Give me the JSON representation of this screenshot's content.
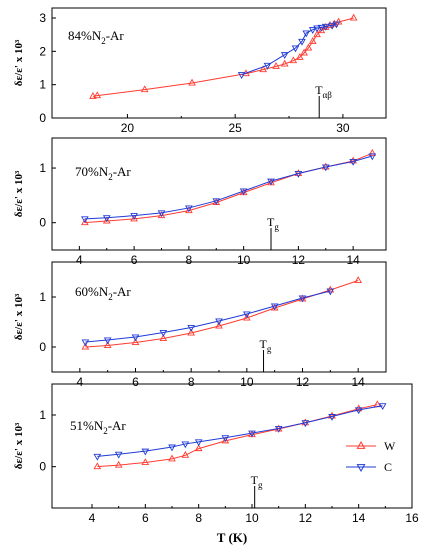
{
  "chart_data": [
    {
      "type": "line",
      "panel_title": "84%N2-Ar",
      "ylabel": "δε/ε' x 10³",
      "xlim": [
        16.5,
        32
      ],
      "ylim": [
        0,
        3.3
      ],
      "xticks": [
        20,
        25,
        30
      ],
      "yticks": [
        0,
        1,
        2,
        3
      ],
      "marker": {
        "label": "Tαβ",
        "x": 28.9
      },
      "series": [
        {
          "name": "W",
          "color": "#ff3b30",
          "symbol": "triangle-up",
          "x": [
            18.4,
            18.6,
            20.8,
            23.0,
            25.5,
            26.3,
            26.9,
            27.3,
            27.7,
            28.0,
            28.2,
            28.4,
            28.6,
            28.8,
            29.0,
            29.2,
            29.4,
            29.6,
            29.8,
            30.5
          ],
          "y": [
            0.65,
            0.67,
            0.85,
            1.05,
            1.33,
            1.45,
            1.55,
            1.62,
            1.72,
            1.82,
            1.95,
            2.1,
            2.3,
            2.5,
            2.62,
            2.72,
            2.78,
            2.82,
            2.88,
            3.0
          ]
        },
        {
          "name": "C",
          "color": "#1f3bd6",
          "symbol": "triangle-down",
          "x": [
            25.3,
            26.5,
            27.3,
            27.8,
            28.1,
            28.3,
            28.6,
            28.8,
            29.0,
            29.2,
            29.5,
            29.7
          ],
          "y": [
            1.3,
            1.58,
            1.9,
            2.1,
            2.3,
            2.55,
            2.65,
            2.7,
            2.72,
            2.75,
            2.78,
            2.82
          ]
        }
      ]
    },
    {
      "type": "line",
      "panel_title": "70%N2-Ar",
      "ylabel": "δε/ε' x 10³",
      "xlim": [
        3.0,
        15.2
      ],
      "ylim": [
        -0.5,
        1.55
      ],
      "xticks": [
        4,
        6,
        8,
        10,
        12,
        14
      ],
      "yticks": [
        0,
        1
      ],
      "marker": {
        "label": "Tg",
        "x": 11.0
      },
      "series": [
        {
          "name": "W",
          "color": "#ff3b30",
          "symbol": "triangle-up",
          "x": [
            4.2,
            5.0,
            6.0,
            7.0,
            8.0,
            9.0,
            10.0,
            11.0,
            12.0,
            13.0,
            14.0,
            14.7
          ],
          "y": [
            0.0,
            0.03,
            0.07,
            0.13,
            0.22,
            0.37,
            0.55,
            0.73,
            0.9,
            1.02,
            1.13,
            1.27
          ]
        },
        {
          "name": "C",
          "color": "#1f3bd6",
          "symbol": "triangle-down",
          "x": [
            4.2,
            5.0,
            6.0,
            7.0,
            8.0,
            9.0,
            10.0,
            11.0,
            12.0,
            13.0,
            14.0,
            14.7
          ],
          "y": [
            0.07,
            0.09,
            0.13,
            0.18,
            0.27,
            0.4,
            0.58,
            0.76,
            0.9,
            1.02,
            1.12,
            1.22
          ]
        }
      ]
    },
    {
      "type": "line",
      "panel_title": "60%N2-Ar",
      "ylabel": "δε/ε' x 10³",
      "xlim": [
        3.0,
        15.0
      ],
      "ylim": [
        -0.5,
        1.7
      ],
      "xticks": [
        4,
        6,
        8,
        10,
        12,
        14
      ],
      "yticks": [
        0,
        1
      ],
      "marker": {
        "label": "Tg",
        "x": 10.6
      },
      "series": [
        {
          "name": "W",
          "color": "#ff3b30",
          "symbol": "triangle-up",
          "x": [
            4.2,
            5.0,
            6.0,
            7.0,
            8.0,
            9.0,
            10.0,
            11.0,
            12.0,
            13.0,
            14.0
          ],
          "y": [
            0.0,
            0.03,
            0.09,
            0.17,
            0.28,
            0.42,
            0.58,
            0.78,
            0.96,
            1.14,
            1.33
          ]
        },
        {
          "name": "C",
          "color": "#1f3bd6",
          "symbol": "triangle-down",
          "x": [
            4.2,
            5.0,
            6.0,
            7.0,
            8.0,
            9.0,
            10.0,
            11.0,
            12.0,
            13.0
          ],
          "y": [
            0.1,
            0.14,
            0.2,
            0.29,
            0.39,
            0.52,
            0.66,
            0.82,
            0.98,
            1.12
          ]
        }
      ]
    },
    {
      "type": "line",
      "panel_title": "51%N2-Ar",
      "ylabel": "δε/ε' x 10³",
      "xlabel": "T (K)",
      "xlim": [
        2.5,
        16
      ],
      "ylim": [
        -0.8,
        1.6
      ],
      "xticks": [
        4,
        6,
        8,
        10,
        12,
        14,
        16
      ],
      "yticks": [
        0,
        1
      ],
      "marker": {
        "label": "Tg",
        "x": 10.1
      },
      "legend": {
        "position": "right",
        "entries": [
          {
            "label": "W",
            "color": "#ff3b30",
            "symbol": "triangle-up"
          },
          {
            "label": "C",
            "color": "#1f3bd6",
            "symbol": "triangle-down"
          }
        ]
      },
      "series": [
        {
          "name": "W",
          "color": "#ff3b30",
          "symbol": "triangle-up",
          "x": [
            4.2,
            5.0,
            6.0,
            7.0,
            7.5,
            8.0,
            9.0,
            10.0,
            11.0,
            12.0,
            13.0,
            14.0,
            14.7
          ],
          "y": [
            0.0,
            0.03,
            0.08,
            0.15,
            0.22,
            0.35,
            0.5,
            0.62,
            0.73,
            0.85,
            0.98,
            1.12,
            1.2
          ]
        },
        {
          "name": "C",
          "color": "#1f3bd6",
          "symbol": "triangle-down",
          "x": [
            4.2,
            5.0,
            6.0,
            7.0,
            7.5,
            8.0,
            9.0,
            10.0,
            11.0,
            12.0,
            13.0,
            14.0,
            14.9
          ],
          "y": [
            0.2,
            0.24,
            0.3,
            0.38,
            0.44,
            0.48,
            0.56,
            0.65,
            0.74,
            0.85,
            0.97,
            1.1,
            1.18
          ]
        }
      ]
    }
  ]
}
